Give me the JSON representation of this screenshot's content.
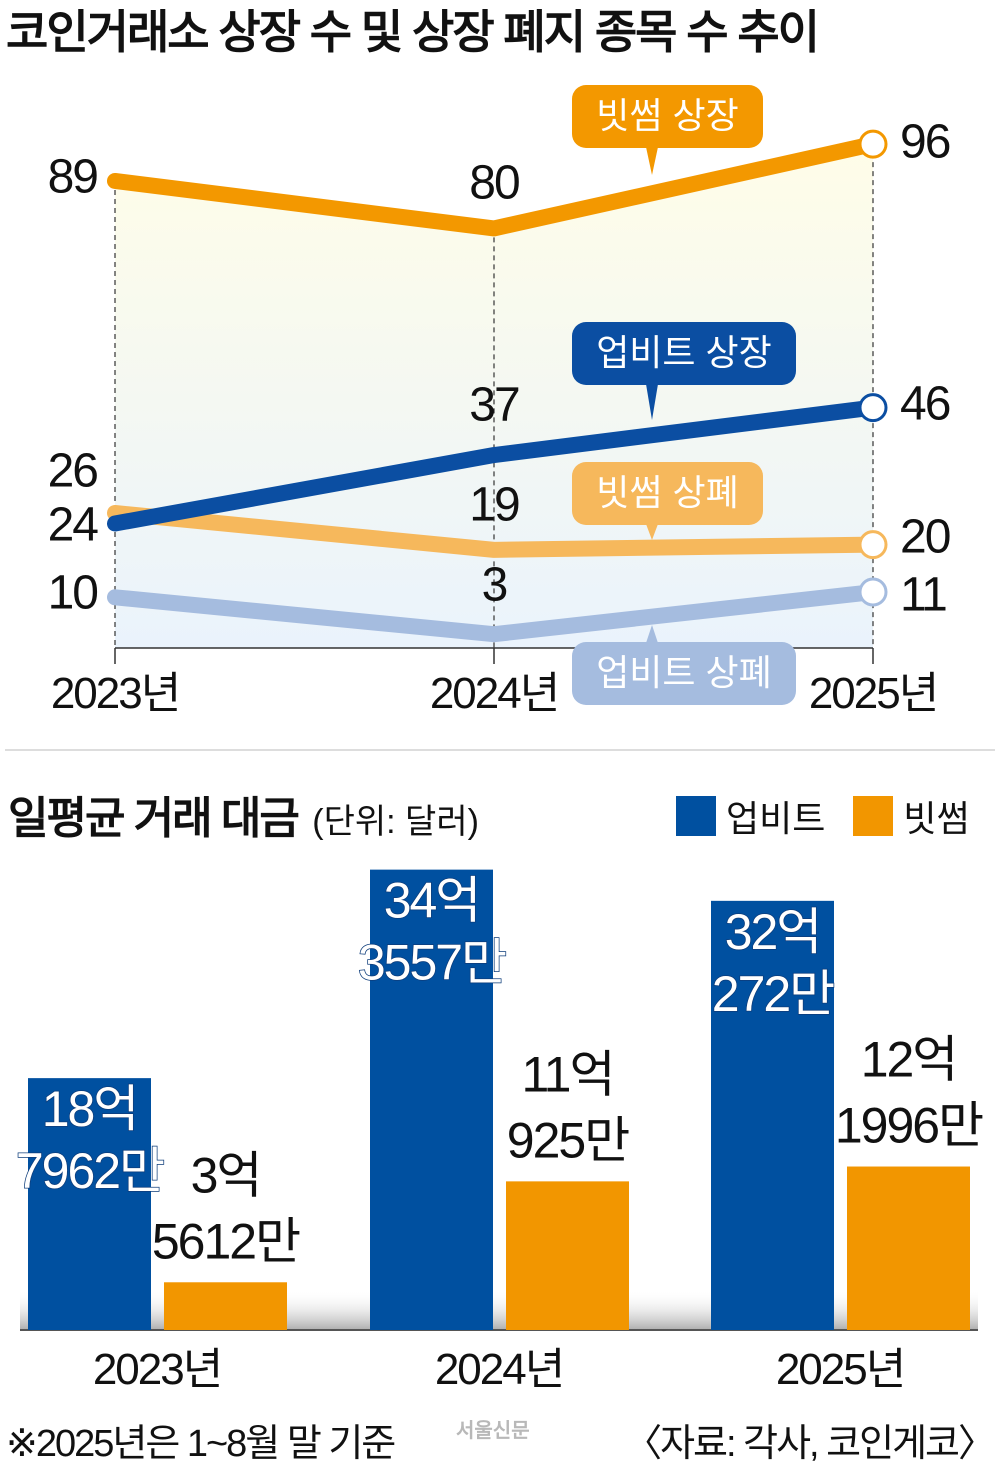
{
  "title": "코인거래소 상장 수 및 상장 폐지 종목 수 추이",
  "chart_data": [
    {
      "type": "line",
      "title": "코인거래소 상장 수 및 상장 폐지 종목 수 추이",
      "categories": [
        "2023년",
        "2024년",
        "2025년"
      ],
      "ylim": [
        0,
        100
      ],
      "grid": false,
      "series": [
        {
          "name": "빗썸 상장",
          "values": [
            89,
            80,
            96
          ],
          "color": "#F39800"
        },
        {
          "name": "업비트 상장",
          "values": [
            24,
            37,
            46
          ],
          "color": "#0B4EA2"
        },
        {
          "name": "빗썸 상폐",
          "values": [
            26,
            19,
            20
          ],
          "color": "#F6B85C"
        },
        {
          "name": "업비트 상폐",
          "values": [
            10,
            3,
            11
          ],
          "color": "#A5BCDF"
        }
      ],
      "value_labels": [
        [
          "89",
          "80",
          "96"
        ],
        [
          "24",
          "37",
          "46"
        ],
        [
          "26",
          "19",
          "20"
        ],
        [
          "10",
          "3",
          "11"
        ]
      ]
    },
    {
      "type": "bar",
      "title": "일평균 거래 대금",
      "unit": "(단위: 달러)",
      "categories": [
        "2023년",
        "2024년",
        "2025년"
      ],
      "ylabel": "억 달러",
      "series": [
        {
          "name": "업비트",
          "values": [
            18.7962,
            34.3557,
            32.0272
          ],
          "color": "#0050A0",
          "labels": [
            [
              "18억",
              "7962만"
            ],
            [
              "34억",
              "3557만"
            ],
            [
              "32억",
              "272만"
            ]
          ]
        },
        {
          "name": "빗썸",
          "values": [
            3.5612,
            11.0925,
            12.1996
          ],
          "color": "#F29600",
          "labels": [
            [
              "3억",
              "5612만"
            ],
            [
              "11억",
              "925만"
            ],
            [
              "12억",
              "1996만"
            ]
          ]
        }
      ]
    }
  ],
  "footer": {
    "note": "※2025년은 1~8월 말 기준",
    "logo": "서울신문",
    "source": "〈자료: 각사, 코인게코〉"
  }
}
